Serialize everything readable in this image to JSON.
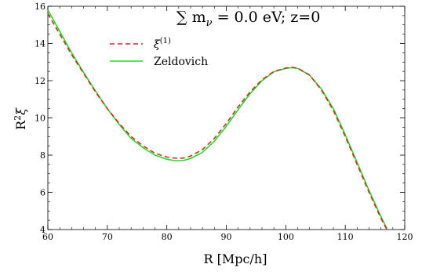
{
  "chart_data": {
    "type": "line",
    "title": "∑ m",
    "title_sub": "ν",
    "title_rest": " = 0.0 eV;  z=0",
    "xlabel": "R [Mpc/h]",
    "ylabel_base": "R",
    "ylabel_sup": "2",
    "ylabel_greek": "ξ",
    "xlim": [
      60,
      120
    ],
    "ylim": [
      4,
      16
    ],
    "xticks": [
      60,
      70,
      80,
      90,
      100,
      110,
      120
    ],
    "yticks": [
      4,
      6,
      8,
      10,
      12,
      14,
      16
    ],
    "grid": false,
    "legend_position": "top-left",
    "series": [
      {
        "name": "ξ",
        "name_sup": "(1)",
        "color": "#d62728",
        "dash": "dashed",
        "x": [
          60,
          62,
          64,
          66,
          68,
          70,
          72,
          74,
          76,
          78,
          80,
          81,
          82,
          83,
          84,
          86,
          88,
          90,
          92,
          94,
          96,
          98,
          100,
          101,
          102,
          104,
          106,
          108,
          110,
          112,
          114,
          116,
          117
        ],
        "y": [
          15.6,
          14.5,
          13.4,
          12.4,
          11.4,
          10.5,
          9.7,
          9.0,
          8.5,
          8.1,
          7.9,
          7.85,
          7.83,
          7.85,
          7.95,
          8.3,
          8.9,
          9.7,
          10.6,
          11.4,
          12.05,
          12.5,
          12.68,
          12.72,
          12.68,
          12.3,
          11.5,
          10.4,
          9.0,
          7.5,
          6.0,
          4.6,
          4.0
        ]
      },
      {
        "name": "Zeldovich",
        "color": "#22dd22",
        "dash": "solid",
        "x": [
          60,
          62,
          64,
          66,
          68,
          70,
          72,
          74,
          76,
          78,
          80,
          81,
          82,
          83,
          84,
          86,
          88,
          90,
          92,
          94,
          96,
          98,
          100,
          101,
          102,
          104,
          106,
          108,
          110,
          112,
          114,
          116,
          117
        ],
        "y": [
          15.8,
          14.65,
          13.5,
          12.45,
          11.45,
          10.5,
          9.65,
          8.9,
          8.4,
          8.0,
          7.78,
          7.72,
          7.7,
          7.73,
          7.82,
          8.15,
          8.75,
          9.55,
          10.45,
          11.3,
          12.0,
          12.48,
          12.66,
          12.7,
          12.66,
          12.3,
          11.55,
          10.5,
          9.1,
          7.6,
          6.1,
          4.7,
          4.05
        ]
      }
    ]
  }
}
